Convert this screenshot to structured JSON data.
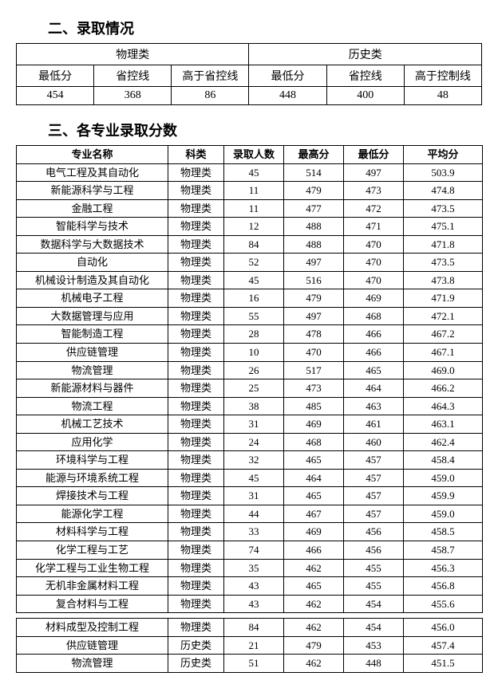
{
  "section1": {
    "title": "二、录取情况",
    "groups": [
      "物理类",
      "历史类"
    ],
    "subheaders": [
      "最低分",
      "省控线",
      "高于省控线",
      "最低分",
      "省控线",
      "高于控制线"
    ],
    "values": [
      "454",
      "368",
      "86",
      "448",
      "400",
      "48"
    ]
  },
  "section2": {
    "title": "三、各专业录取分数",
    "headers": [
      "专业名称",
      "科类",
      "录取人数",
      "最高分",
      "最低分",
      "平均分"
    ],
    "rows_a": [
      [
        "电气工程及其自动化",
        "物理类",
        "45",
        "514",
        "497",
        "503.9"
      ],
      [
        "新能源科学与工程",
        "物理类",
        "11",
        "479",
        "473",
        "474.8"
      ],
      [
        "金融工程",
        "物理类",
        "11",
        "477",
        "472",
        "473.5"
      ],
      [
        "智能科学与技术",
        "物理类",
        "12",
        "488",
        "471",
        "475.1"
      ],
      [
        "数据科学与大数据技术",
        "物理类",
        "84",
        "488",
        "470",
        "471.8"
      ],
      [
        "自动化",
        "物理类",
        "52",
        "497",
        "470",
        "473.5"
      ],
      [
        "机械设计制造及其自动化",
        "物理类",
        "45",
        "516",
        "470",
        "473.8"
      ],
      [
        "机械电子工程",
        "物理类",
        "16",
        "479",
        "469",
        "471.9"
      ],
      [
        "大数据管理与应用",
        "物理类",
        "55",
        "497",
        "468",
        "472.1"
      ],
      [
        "智能制造工程",
        "物理类",
        "28",
        "478",
        "466",
        "467.2"
      ],
      [
        "供应链管理",
        "物理类",
        "10",
        "470",
        "466",
        "467.1"
      ],
      [
        "物流管理",
        "物理类",
        "26",
        "517",
        "465",
        "469.0"
      ],
      [
        "新能源材料与器件",
        "物理类",
        "25",
        "473",
        "464",
        "466.2"
      ],
      [
        "物流工程",
        "物理类",
        "38",
        "485",
        "463",
        "464.3"
      ],
      [
        "机械工艺技术",
        "物理类",
        "31",
        "469",
        "461",
        "463.1"
      ],
      [
        "应用化学",
        "物理类",
        "24",
        "468",
        "460",
        "462.4"
      ],
      [
        "环境科学与工程",
        "物理类",
        "32",
        "465",
        "457",
        "458.4"
      ],
      [
        "能源与环境系统工程",
        "物理类",
        "45",
        "464",
        "457",
        "459.0"
      ],
      [
        "焊接技术与工程",
        "物理类",
        "31",
        "465",
        "457",
        "459.9"
      ],
      [
        "能源化学工程",
        "物理类",
        "44",
        "467",
        "457",
        "459.0"
      ],
      [
        "材料科学与工程",
        "物理类",
        "33",
        "469",
        "456",
        "458.5"
      ],
      [
        "化学工程与工艺",
        "物理类",
        "74",
        "466",
        "456",
        "458.7"
      ],
      [
        "化学工程与工业生物工程",
        "物理类",
        "35",
        "462",
        "455",
        "456.3"
      ],
      [
        "无机非金属材料工程",
        "物理类",
        "43",
        "465",
        "455",
        "456.8"
      ],
      [
        "复合材料与工程",
        "物理类",
        "43",
        "462",
        "454",
        "455.6"
      ]
    ],
    "rows_b": [
      [
        "材料成型及控制工程",
        "物理类",
        "84",
        "462",
        "454",
        "456.0"
      ],
      [
        "供应链管理",
        "历史类",
        "21",
        "479",
        "453",
        "457.4"
      ],
      [
        "物流管理",
        "历史类",
        "51",
        "462",
        "448",
        "451.5"
      ]
    ]
  }
}
